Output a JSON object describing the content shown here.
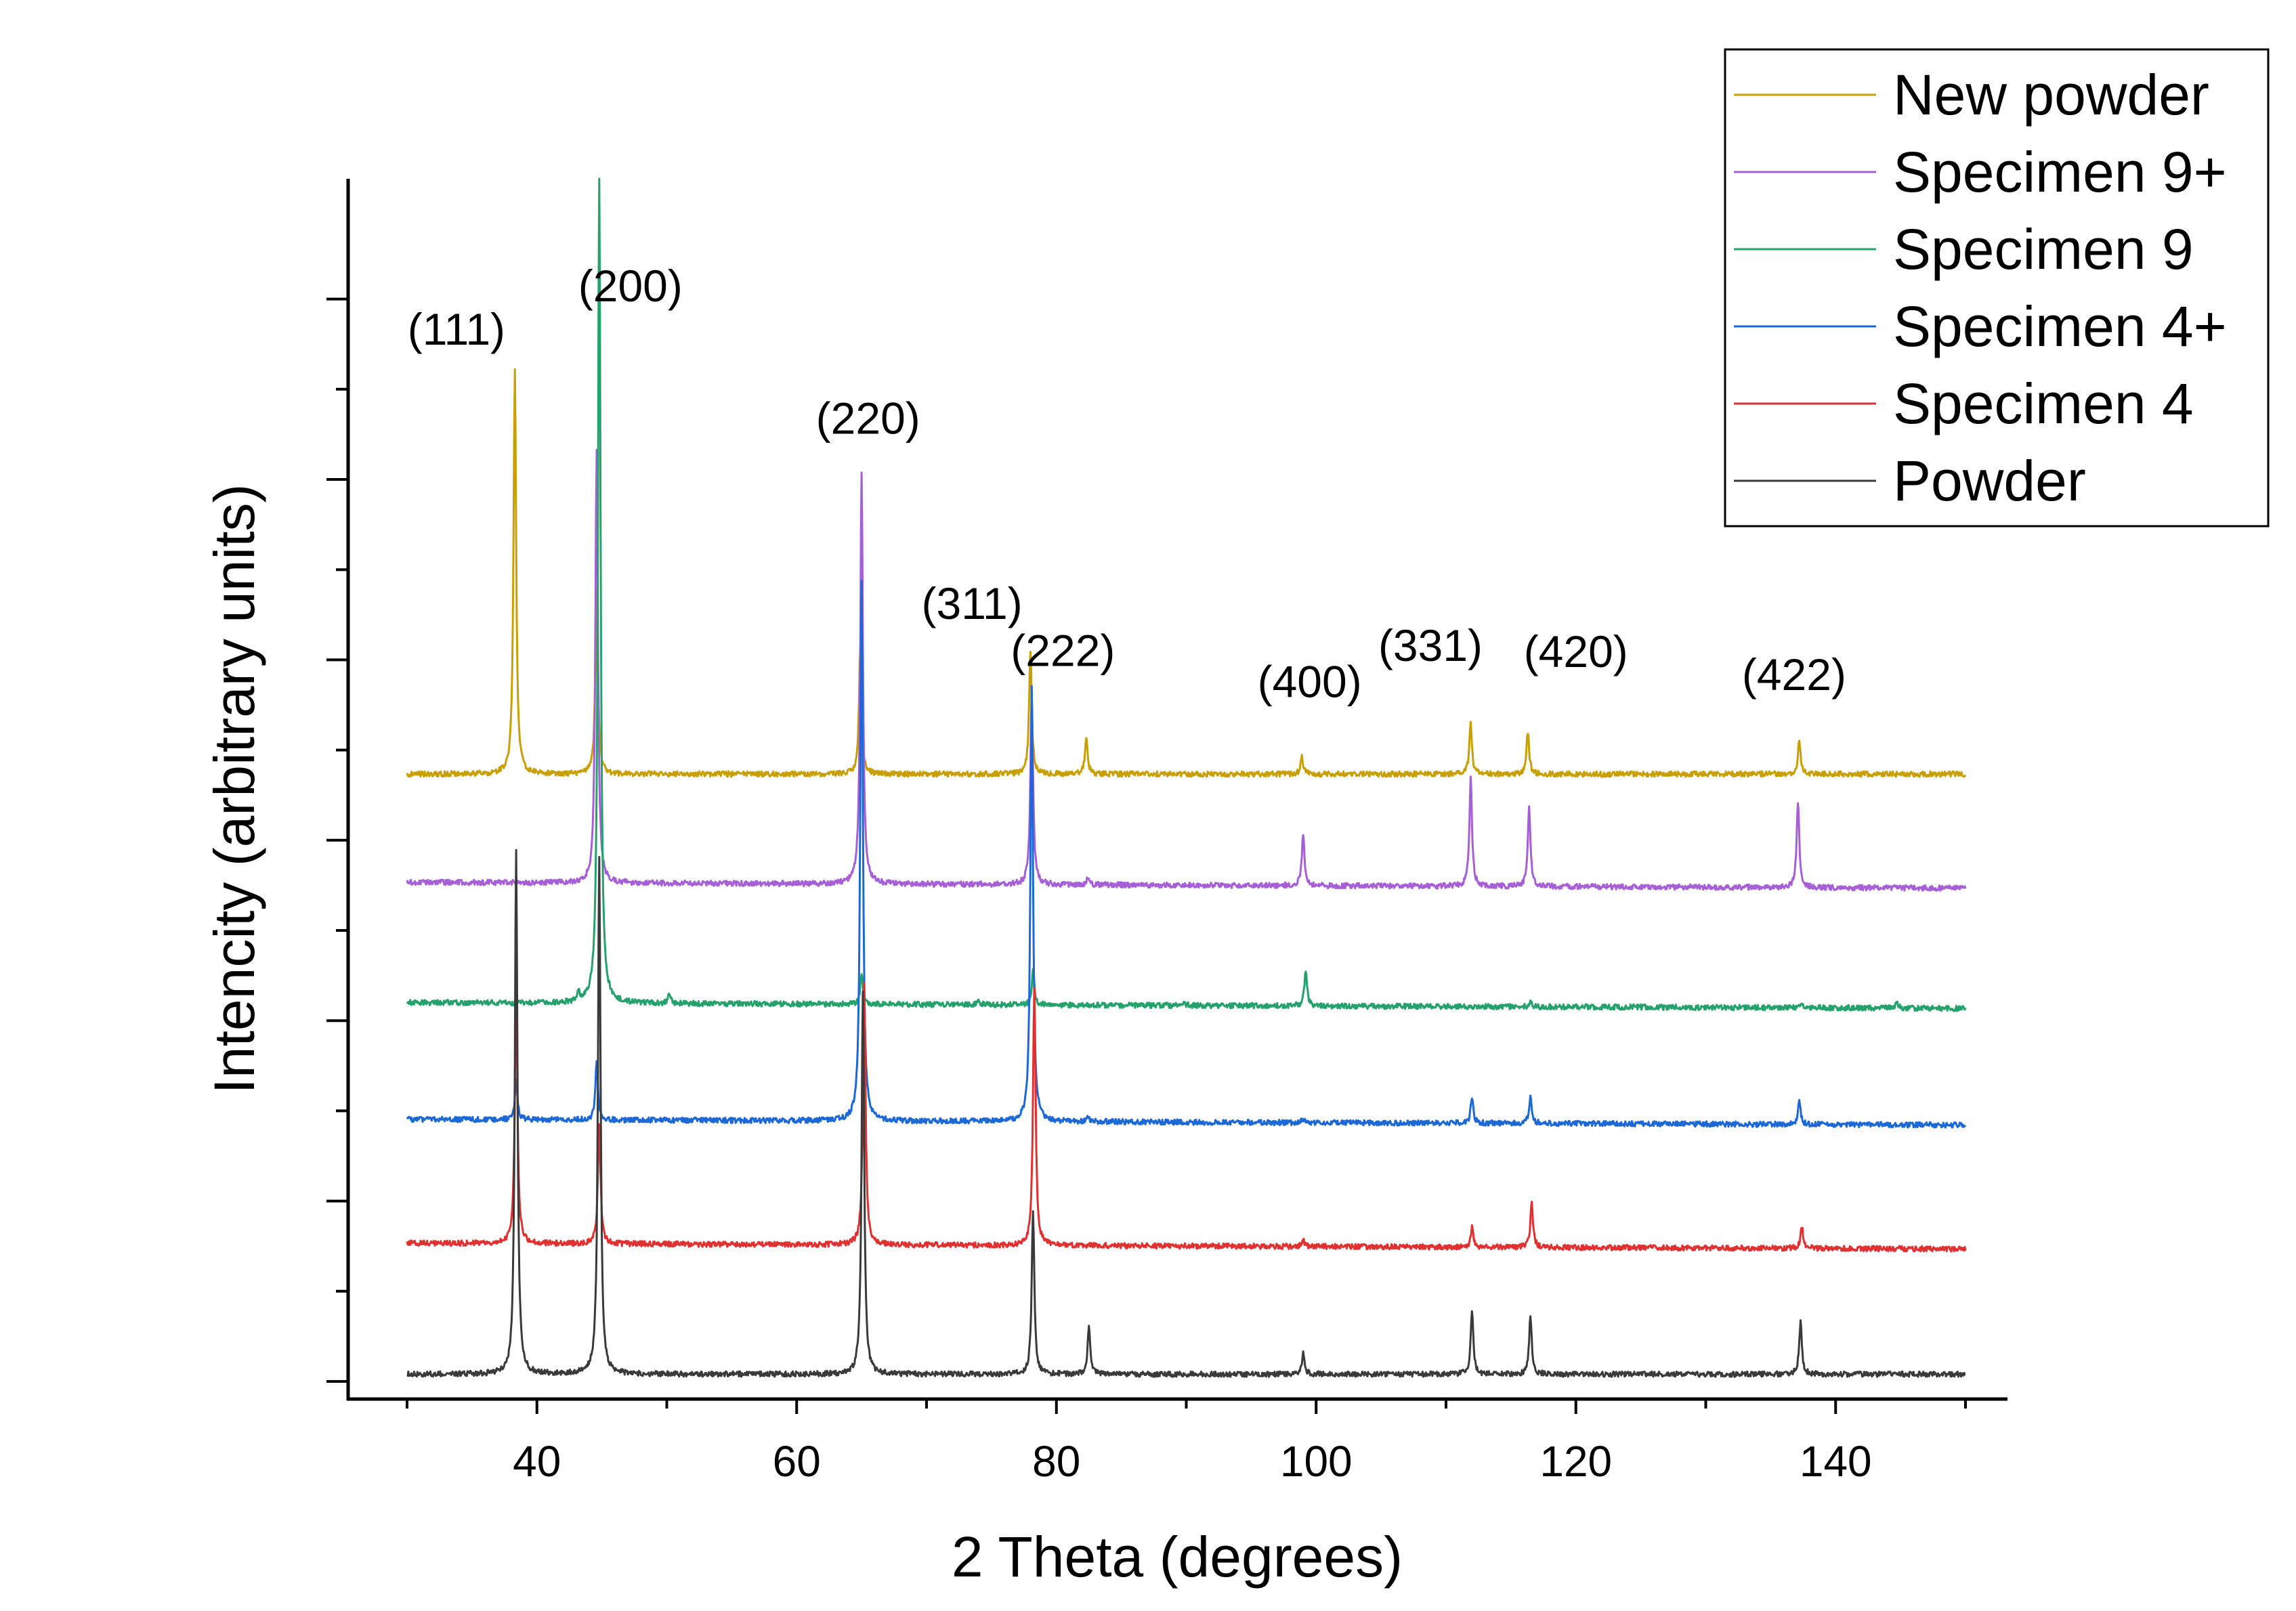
{
  "chart_data": {
    "type": "line",
    "title": "",
    "xlabel": "2 Theta (degrees)",
    "ylabel": "Intencity (arbitrary units)",
    "xlim": [
      25,
      151
    ],
    "ylim": [
      0,
      100
    ],
    "x_ticks": [
      40,
      60,
      80,
      100,
      120,
      140
    ],
    "x_minor_step": 10,
    "y_tick_labels_shown": false,
    "grid": false,
    "legend_position": "top-right",
    "peak_labels": [
      {
        "text": "(111)",
        "x": 33.8,
        "y": 86.2
      },
      {
        "text": "(200)",
        "x": 47.2,
        "y": 89.8
      },
      {
        "text": "(220)",
        "x": 65.5,
        "y": 78.8
      },
      {
        "text": "(311)",
        "x": 73.5,
        "y": 63.4
      },
      {
        "text": "(222)",
        "x": 80.5,
        "y": 59.5
      },
      {
        "text": "(400)",
        "x": 99.5,
        "y": 56.9
      },
      {
        "text": "(331)",
        "x": 108.8,
        "y": 59.9
      },
      {
        "text": "(420)",
        "x": 120.0,
        "y": 59.4
      },
      {
        "text": "(422)",
        "x": 136.8,
        "y": 57.5
      }
    ],
    "series": [
      {
        "name": "New powder",
        "color": "#c8a005",
        "baseline": 50.5,
        "slope": 0,
        "x_range": [
          30,
          150
        ],
        "peaks": [
          {
            "x": 38.3,
            "h": 33.5
          },
          {
            "x": 44.6,
            "h": 15.5
          },
          {
            "x": 64.9,
            "h": 10.5
          },
          {
            "x": 78.0,
            "h": 10.2
          },
          {
            "x": 82.3,
            "h": 3.0
          },
          {
            "x": 98.9,
            "h": 1.5
          },
          {
            "x": 111.9,
            "h": 4.2
          },
          {
            "x": 116.3,
            "h": 3.5
          },
          {
            "x": 137.2,
            "h": 2.8
          }
        ]
      },
      {
        "name": "Specimen 9+",
        "color": "#a65fd6",
        "baseline": 41.5,
        "slope": -0.004,
        "x_range": [
          30,
          150
        ],
        "peaks": [
          {
            "x": 44.6,
            "h": 36.0
          },
          {
            "x": 65.0,
            "h": 34.2
          },
          {
            "x": 78.1,
            "h": 16.0
          },
          {
            "x": 82.4,
            "h": 0.5
          },
          {
            "x": 99.0,
            "h": 4.3
          },
          {
            "x": 111.9,
            "h": 9.0
          },
          {
            "x": 116.4,
            "h": 6.6
          },
          {
            "x": 137.1,
            "h": 7.2
          }
        ]
      },
      {
        "name": "Specimen 9",
        "color": "#25a16b",
        "baseline": 31.5,
        "slope": -0.004,
        "x_range": [
          30,
          150
        ],
        "peaks": [
          {
            "x": 43.2,
            "h": 0.8
          },
          {
            "x": 44.8,
            "h": 69.0
          },
          {
            "x": 50.2,
            "h": 0.7
          },
          {
            "x": 65.0,
            "h": 2.5
          },
          {
            "x": 74.0,
            "h": 0.4
          },
          {
            "x": 78.2,
            "h": 2.8
          },
          {
            "x": 89.8,
            "h": 0.3
          },
          {
            "x": 99.2,
            "h": 3.0
          },
          {
            "x": 116.5,
            "h": 0.4
          },
          {
            "x": 137.3,
            "h": 0.3
          },
          {
            "x": 144.7,
            "h": 0.6
          }
        ]
      },
      {
        "name": "Specimen 4+",
        "color": "#1b68d6",
        "baseline": 21.8,
        "slope": -0.004,
        "x_range": [
          30,
          150
        ],
        "peaks": [
          {
            "x": 38.4,
            "h": 3.2
          },
          {
            "x": 44.6,
            "h": 4.9
          },
          {
            "x": 65.0,
            "h": 45.0
          },
          {
            "x": 78.1,
            "h": 36.0
          },
          {
            "x": 82.4,
            "h": 0.4
          },
          {
            "x": 99.0,
            "h": 0.3
          },
          {
            "x": 112.0,
            "h": 2.1
          },
          {
            "x": 116.5,
            "h": 2.3
          },
          {
            "x": 137.2,
            "h": 2.0
          }
        ]
      },
      {
        "name": "Specimen 4",
        "color": "#e03030",
        "baseline": 11.5,
        "slope": -0.004,
        "x_range": [
          30,
          150
        ],
        "peaks": [
          {
            "x": 38.4,
            "h": 21.4
          },
          {
            "x": 44.8,
            "h": 10.0
          },
          {
            "x": 65.2,
            "h": 22.0
          },
          {
            "x": 78.3,
            "h": 21.6
          },
          {
            "x": 99.0,
            "h": 0.5
          },
          {
            "x": 112.0,
            "h": 1.6
          },
          {
            "x": 116.6,
            "h": 3.7
          },
          {
            "x": 137.4,
            "h": 1.8
          }
        ]
      },
      {
        "name": "Powder",
        "color": "#3a3a3a",
        "baseline": 0.6,
        "slope": 0,
        "x_range": [
          30,
          150
        ],
        "peaks": [
          {
            "x": 38.4,
            "h": 43.5
          },
          {
            "x": 44.8,
            "h": 43.0
          },
          {
            "x": 65.1,
            "h": 32.0
          },
          {
            "x": 78.2,
            "h": 13.5
          },
          {
            "x": 82.5,
            "h": 4.0
          },
          {
            "x": 99.0,
            "h": 1.7
          },
          {
            "x": 112.0,
            "h": 5.3
          },
          {
            "x": 116.5,
            "h": 4.8
          },
          {
            "x": 137.3,
            "h": 4.4
          }
        ]
      }
    ],
    "legend_order": [
      "New powder",
      "Specimen 9+",
      "Specimen 9",
      "Specimen 4+",
      "Specimen 4",
      "Powder"
    ]
  }
}
